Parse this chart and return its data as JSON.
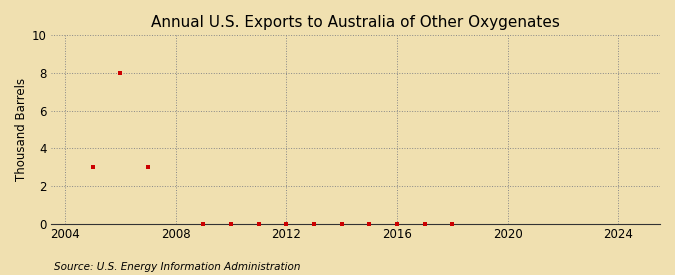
{
  "title": "Annual U.S. Exports to Australia of Other Oxygenates",
  "ylabel": "Thousand Barrels",
  "source": "Source: U.S. Energy Information Administration",
  "background_color": "#f0e0b0",
  "plot_background_color": "#f0e0b0",
  "marker_color": "#cc0000",
  "marker_size": 3.5,
  "xlim": [
    2003.5,
    2025.5
  ],
  "ylim": [
    0,
    10
  ],
  "xticks": [
    2004,
    2008,
    2012,
    2016,
    2020,
    2024
  ],
  "yticks": [
    0,
    2,
    4,
    6,
    8,
    10
  ],
  "data_years": [
    2005,
    2006,
    2007,
    2009,
    2010,
    2011,
    2012,
    2013,
    2014,
    2015,
    2016,
    2017,
    2018
  ],
  "data_values": [
    3,
    8,
    3,
    0,
    0,
    0,
    0,
    0,
    0,
    0,
    0,
    0,
    0
  ],
  "title_fontsize": 11,
  "axis_fontsize": 8.5,
  "label_fontsize": 8.5,
  "source_fontsize": 7.5
}
